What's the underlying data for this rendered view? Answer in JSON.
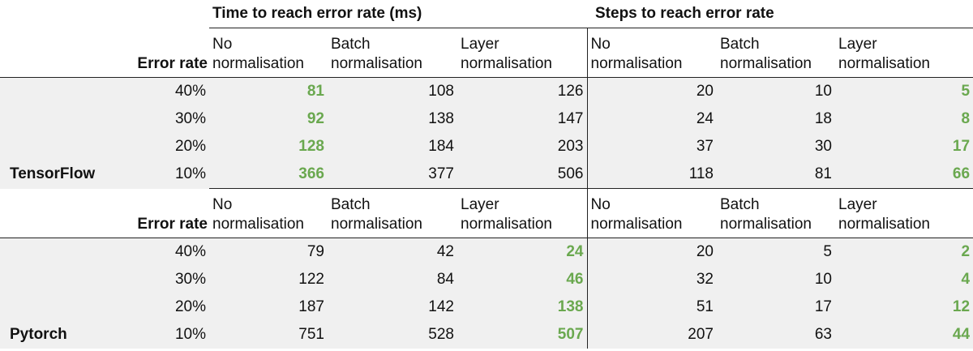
{
  "groups": {
    "time": "Time to reach error rate (ms)",
    "steps": "Steps to reach error rate"
  },
  "error_rate_label": "Error rate",
  "columns": [
    [
      "No",
      "normalisation"
    ],
    [
      "Batch",
      "normalisation"
    ],
    [
      "Layer",
      "normalisation"
    ],
    [
      "No",
      "normalisation"
    ],
    [
      "Batch",
      "normalisation"
    ],
    [
      "Layer",
      "normalisation"
    ]
  ],
  "accent_color": "#6aa84f",
  "frameworks": [
    {
      "name": "TensorFlow",
      "rows": [
        {
          "rate": "40%",
          "values": [
            "81",
            "108",
            "126",
            "20",
            "10",
            "5"
          ],
          "best": [
            0,
            5
          ]
        },
        {
          "rate": "30%",
          "values": [
            "92",
            "138",
            "147",
            "24",
            "18",
            "8"
          ],
          "best": [
            0,
            5
          ]
        },
        {
          "rate": "20%",
          "values": [
            "128",
            "184",
            "203",
            "37",
            "30",
            "17"
          ],
          "best": [
            0,
            5
          ]
        },
        {
          "rate": "10%",
          "values": [
            "366",
            "377",
            "506",
            "118",
            "81",
            "66"
          ],
          "best": [
            0,
            5
          ]
        }
      ]
    },
    {
      "name": "Pytorch",
      "rows": [
        {
          "rate": "40%",
          "values": [
            "79",
            "42",
            "24",
            "20",
            "5",
            "2"
          ],
          "best": [
            2,
            5
          ]
        },
        {
          "rate": "30%",
          "values": [
            "122",
            "84",
            "46",
            "32",
            "10",
            "4"
          ],
          "best": [
            2,
            5
          ]
        },
        {
          "rate": "20%",
          "values": [
            "187",
            "142",
            "138",
            "51",
            "17",
            "12"
          ],
          "best": [
            2,
            5
          ]
        },
        {
          "rate": "10%",
          "values": [
            "751",
            "528",
            "507",
            "207",
            "63",
            "44"
          ],
          "best": [
            2,
            5
          ]
        }
      ]
    }
  ]
}
